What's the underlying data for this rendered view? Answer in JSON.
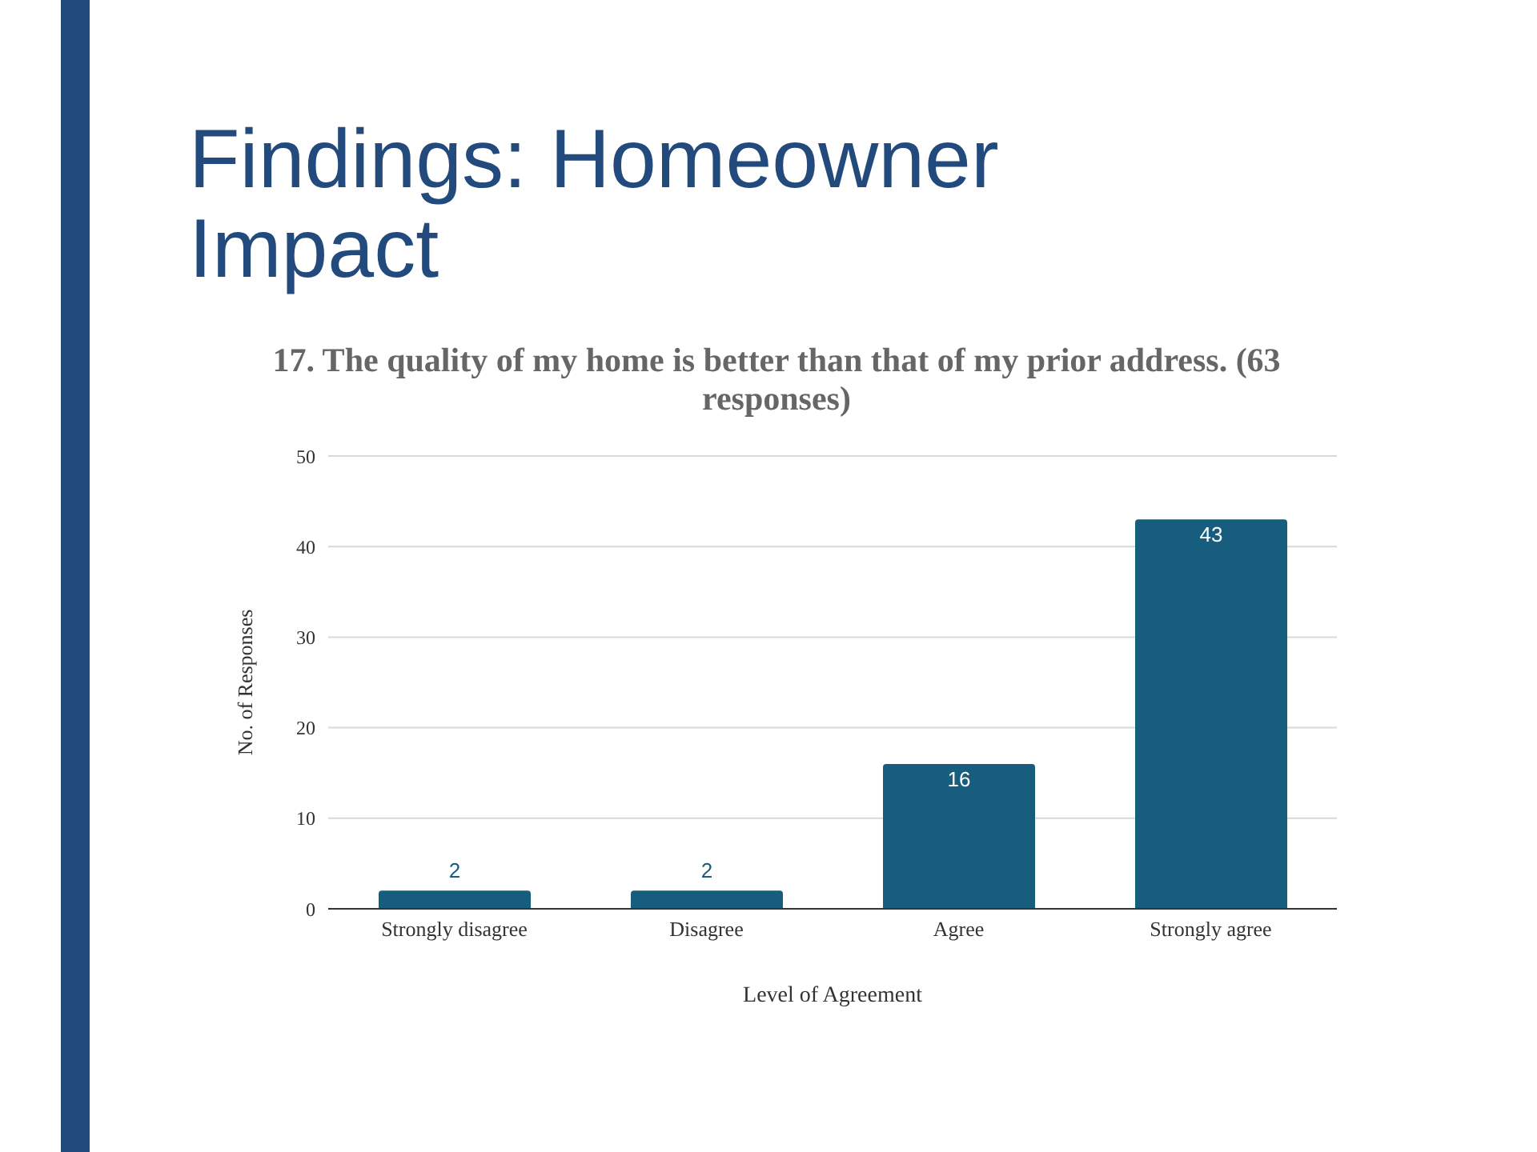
{
  "chart_data": {
    "type": "bar",
    "title": "Findings: Homeowner Impact",
    "subtitle": "17. The quality of my home is better than that of my prior address. (63 responses)",
    "xlabel": "Level of Agreement",
    "ylabel": "No. of Responses",
    "categories": [
      "Strongly disagree",
      "Disagree",
      "Agree",
      "Strongly agree"
    ],
    "values": [
      2,
      2,
      16,
      43
    ],
    "color": "#175e7e",
    "ylim": [
      0,
      50
    ],
    "yticks": [
      0,
      10,
      20,
      30,
      40,
      50
    ],
    "grid": "y",
    "data_labels": true
  }
}
